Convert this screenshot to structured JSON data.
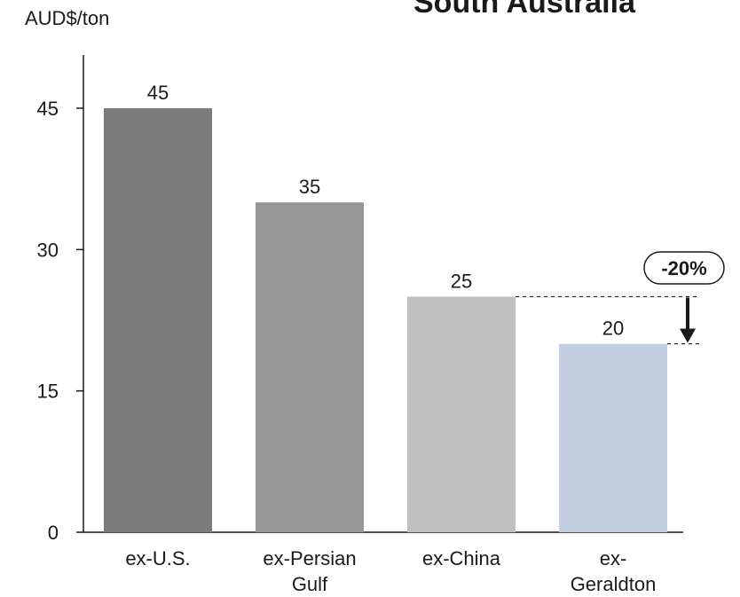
{
  "chart_data": {
    "type": "bar",
    "title": "South Australia",
    "ylabel": "AUD$/ton",
    "xlabel": "",
    "categories": [
      "ex-U.S.",
      "ex-Persian Gulf",
      "ex-China",
      "ex-Geraldton"
    ],
    "category_label_lines": [
      [
        "ex-U.S."
      ],
      [
        "ex-Persian",
        "Gulf"
      ],
      [
        "ex-China"
      ],
      [
        "ex-",
        "Geraldton"
      ]
    ],
    "values": [
      45,
      35,
      25,
      20
    ],
    "data_labels": [
      "45",
      "35",
      "25",
      "20"
    ],
    "colors": [
      "#7b7b7b",
      "#969696",
      "#c0c0c0",
      "#c3cfe0"
    ],
    "ylim": [
      0,
      45
    ],
    "yticks": [
      0,
      15,
      30,
      45
    ],
    "grid": false,
    "annotation": {
      "text": "-20%",
      "from_category": "ex-China",
      "to_category": "ex-Geraldton",
      "from_value": 25,
      "to_value": 20
    }
  }
}
